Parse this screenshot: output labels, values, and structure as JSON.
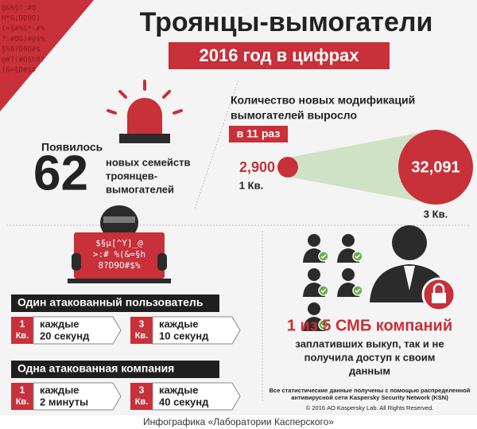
{
  "header": {
    "title": "Троянцы-вымогатели",
    "subtitle": "2016 год в цифрах"
  },
  "corner_code": [
    "@&%§?:#Q",
    "H*G;DD9O)",
    "(=§#%&*-#%",
    "?:#Q&)#@$%",
    "§h8?D9O#$",
    "@#?:#Q§h8?",
    "(&=§D#$#"
  ],
  "families": {
    "intro": "Появилось",
    "number": "62",
    "text": [
      "новых семейств",
      "троянцев-",
      "вымогателей"
    ]
  },
  "modifications": {
    "heading": [
      "Количество новых модификаций",
      "вымогателей выросло"
    ],
    "highlight": "в 11 раз",
    "q1_value": "2,900",
    "q1_label": "1 Кв.",
    "q3_value": "32,091",
    "q3_label": "3 Кв."
  },
  "screen_code": [
    "$§µ[^Y]_@",
    ">:# %(&=§h",
    "8?D9O#$%"
  ],
  "user_attacks": {
    "title": "Один атакованный пользователь",
    "items": [
      {
        "quarter": "1",
        "unit": "Кв.",
        "lines": [
          "каждые",
          "20 секунд"
        ]
      },
      {
        "quarter": "3",
        "unit": "Кв.",
        "lines": [
          "каждые",
          "10 секунд"
        ]
      }
    ]
  },
  "company_attacks": {
    "title": "Одна атакованная компания",
    "items": [
      {
        "quarter": "1",
        "unit": "Кв.",
        "lines": [
          "каждые",
          "2 минуты"
        ]
      },
      {
        "quarter": "3",
        "unit": "Кв.",
        "lines": [
          "каждые",
          "40 секунд"
        ]
      }
    ]
  },
  "smb": {
    "headline": "1 из 5 СМБ компаний",
    "lines": [
      "заплативших выкуп, так и не",
      "получила доступ к своим",
      "данным"
    ]
  },
  "footnote": [
    "Все статистические данные получены с помощью распределенной",
    "антивирусной сети Kaspersky Security Network (KSN)"
  ],
  "copyright": "© 2016 АО Kaspersky Lab. All Rights Reserved.",
  "caption": "Инфографика «Лаборатории Касперского»"
}
